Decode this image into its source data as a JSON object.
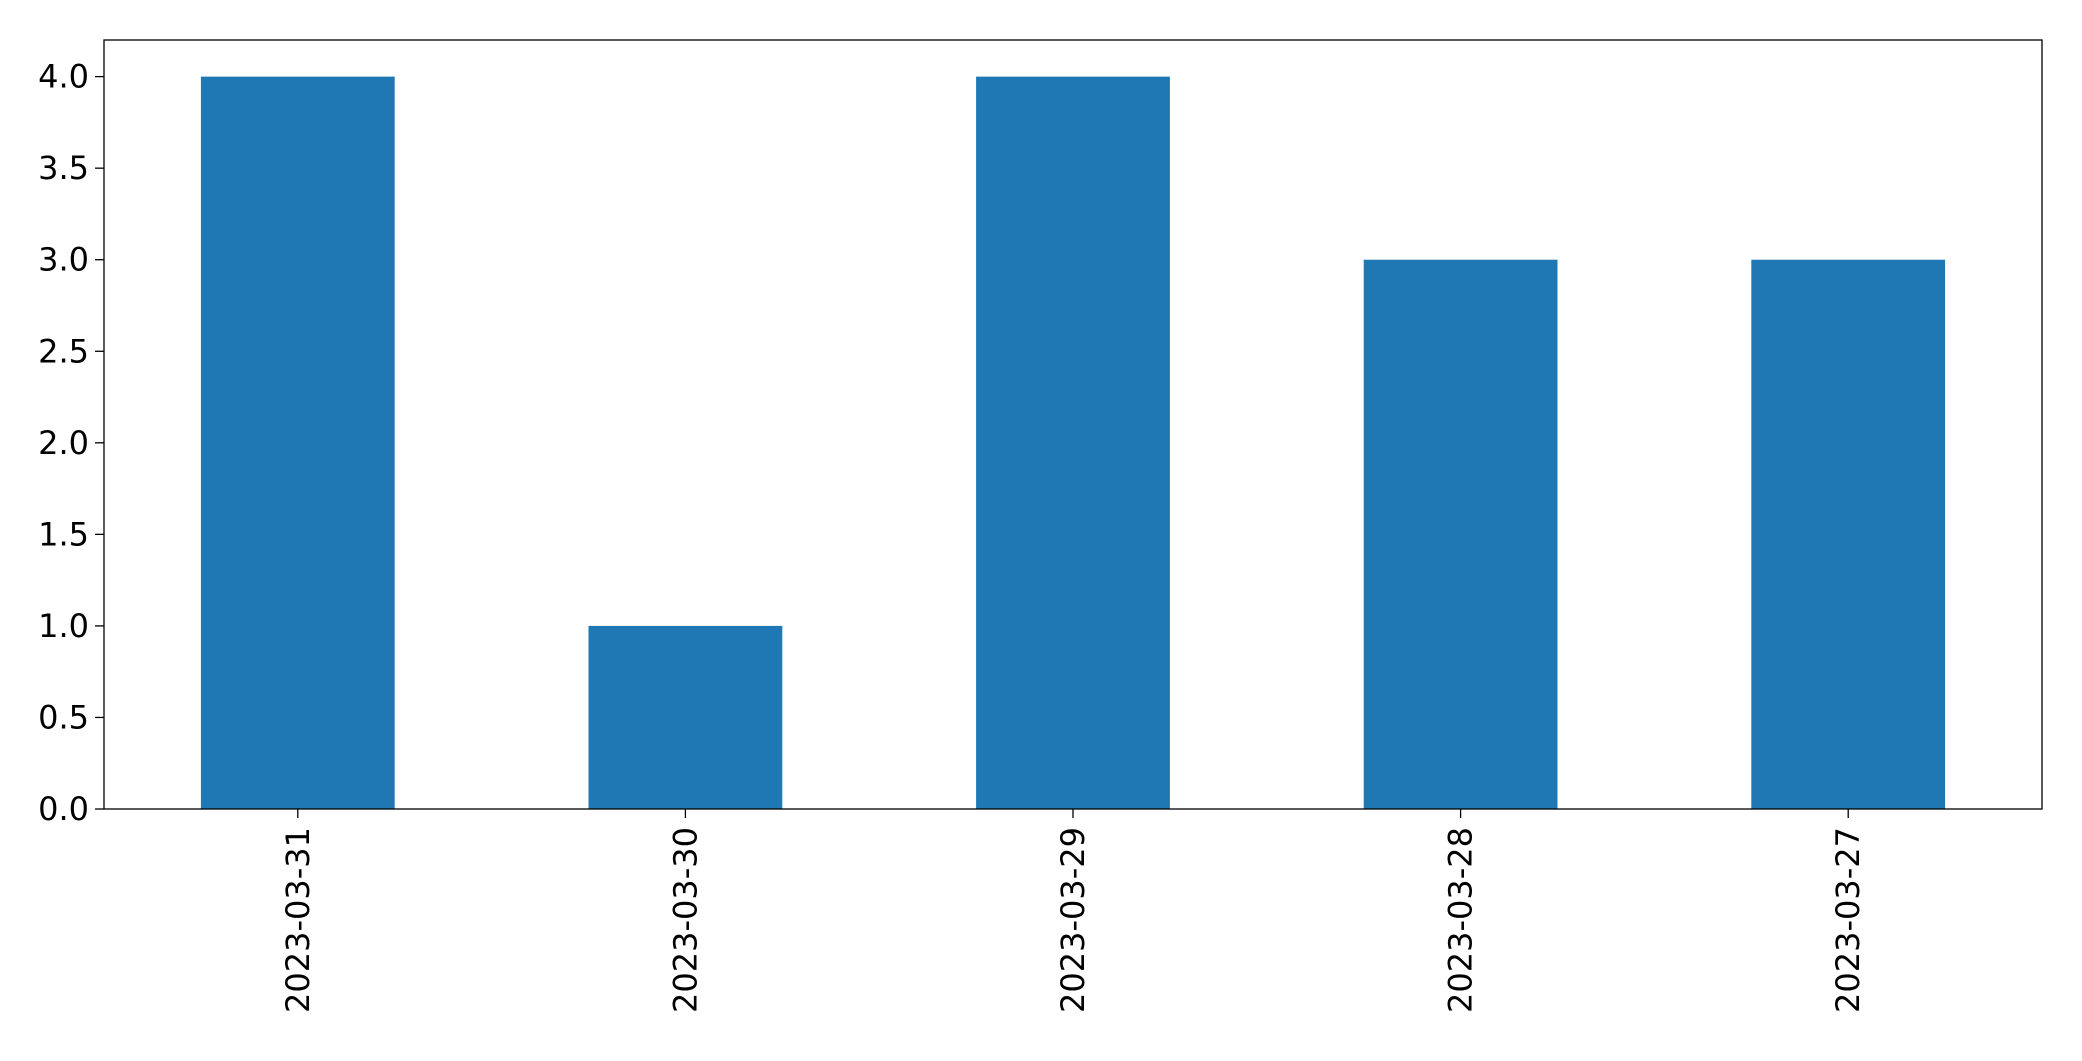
{
  "chart_data": {
    "type": "bar",
    "categories": [
      "2023-03-31",
      "2023-03-30",
      "2023-03-29",
      "2023-03-28",
      "2023-03-27"
    ],
    "values": [
      4,
      1,
      4,
      3,
      3
    ],
    "color": "#1f77b4",
    "ylim": [
      0,
      4.2
    ],
    "yticks": [
      {
        "value": 0,
        "label": "0.0"
      },
      0.5,
      {
        "value": 1,
        "label": "1.0"
      },
      1.5,
      {
        "value": 2,
        "label": "2.0"
      },
      2.5,
      {
        "value": 3,
        "label": "3.0"
      },
      3.5,
      {
        "value": 4,
        "label": "4.0"
      }
    ],
    "grid": false
  }
}
